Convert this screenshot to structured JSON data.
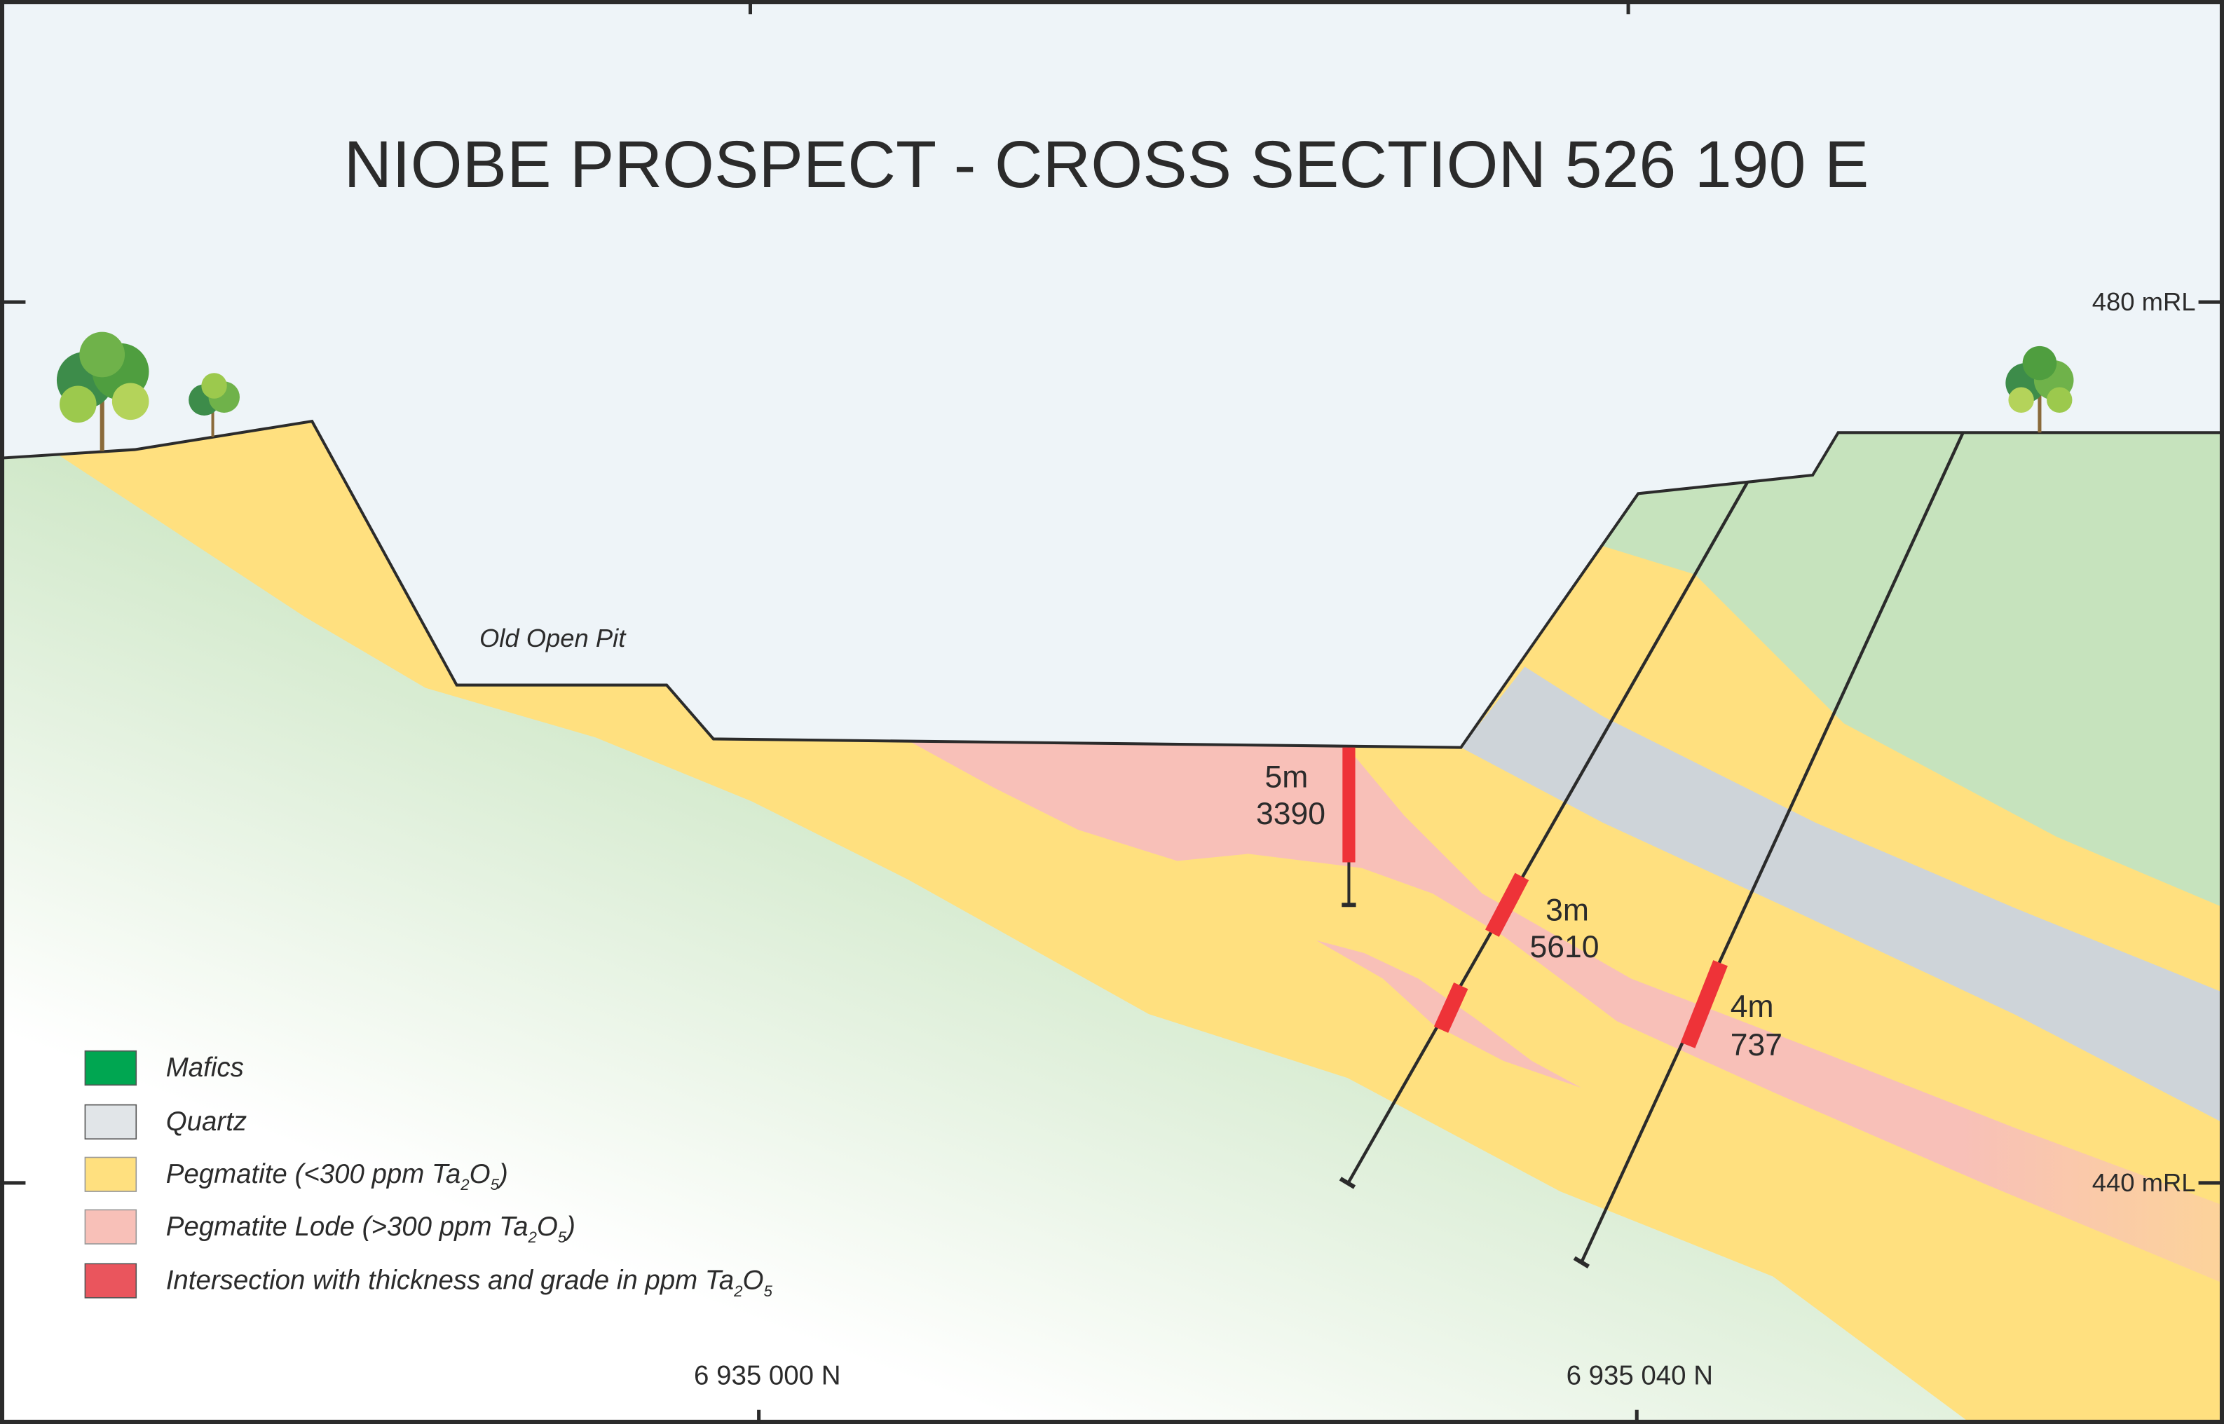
{
  "title": "NIOBE PROSPECT - CROSS SECTION 526 190 E",
  "annotations": {
    "old_open_pit": "Old Open Pit",
    "rl_upper": "480 mRL",
    "rl_lower": "440 mRL",
    "northing_left": "6 935 000 N",
    "northing_right": "6 935 040 N"
  },
  "intersections": [
    {
      "thickness": "5m",
      "grade": "3390"
    },
    {
      "thickness": "3m",
      "grade": "5610"
    },
    {
      "thickness": "4m",
      "grade": "737"
    }
  ],
  "colors": {
    "mafics": "#00a651",
    "mafics_tint": "#c6e3bd",
    "quartz": "#ced4d9",
    "pegmatite": "#ffe07f",
    "lode": "#f8c0b8",
    "intersection": "#ee3338",
    "sky": "#eef4f8"
  },
  "legend": [
    {
      "label": "Mafics"
    },
    {
      "label": "Quartz"
    },
    {
      "label": "Pegmatite (<300 ppm Ta",
      "sub1": "2",
      "mid": "O",
      "sub2": "5",
      "tail": ")"
    },
    {
      "label": "Pegmatite Lode (>300 ppm Ta",
      "sub1": "2",
      "mid": "O",
      "sub2": "5",
      "tail": ")"
    },
    {
      "label": "Intersection with thickness and grade in ppm Ta",
      "sub1": "2",
      "mid": "O",
      "sub2": "5",
      "tail": ""
    }
  ]
}
